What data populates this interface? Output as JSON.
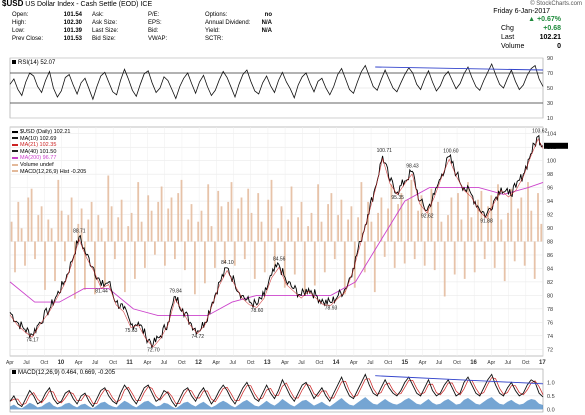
{
  "header": {
    "title_symbol": "$USD",
    "title_name": "US Dollar Index - Cash Settle (EOD) ICE",
    "logo": "© StockCharts.com",
    "date": "Friday  6-Jan-2017",
    "fields": [
      {
        "label": "Open:",
        "value": "101.54"
      },
      {
        "label": "High:",
        "value": "102.30"
      },
      {
        "label": "Low:",
        "value": "101.39"
      },
      {
        "label": "Prev Close:",
        "value": "101.53"
      }
    ],
    "fields2": [
      {
        "label": "Ask:",
        "value": ""
      },
      {
        "label": "Ask Size:",
        "value": ""
      },
      {
        "label": "Last Size:",
        "value": ""
      },
      {
        "label": "Bid Size:",
        "value": ""
      }
    ],
    "fields3": [
      {
        "label": "P/E:",
        "value": ""
      },
      {
        "label": "EPS:",
        "value": ""
      },
      {
        "label": "Bid:",
        "value": ""
      },
      {
        "label": "VWAP:",
        "value": ""
      }
    ],
    "fields4": [
      {
        "label": "Options:",
        "value": "no"
      },
      {
        "label": "Annual Dividend:",
        "value": "N/A"
      },
      {
        "label": "Yield:",
        "value": "N/A"
      },
      {
        "label": "SCTR:",
        "value": ""
      }
    ],
    "pct_change": "+0.67%",
    "chg_label": "Chg",
    "chg_value": "+0.68",
    "last_label": "Last",
    "last_value": "102.21",
    "volume_label": "Volume",
    "volume_value": "0"
  },
  "rsi_label": "RSI(14) 52.07",
  "price_legend": [
    "$USD (Daily) 102.21",
    "MA(10) 102.69",
    "MA(21) 102.35",
    "MA(40) 101.50",
    "MA(200) 96.77",
    "Volume undef",
    "MACD(12,26,9) Hist -0.205"
  ],
  "macd_label": "MACD(12,26,9) 0.464, 0.669, -0.205",
  "colors": {
    "price": "#000000",
    "ma10": "#1a1a1a",
    "ma21": "#cc2222",
    "ma40": "#222222",
    "ma200": "#cc44cc",
    "volume": "#e3b99a",
    "rsi_line": "#111111",
    "trendline": "#3344cc",
    "macd": "#111111",
    "signal": "#cc2222",
    "macd_hist": "#3a7fc0"
  },
  "chart_data": {
    "type": "line",
    "title": "$USD US Dollar Index - Cash Settle (EOD) ICE",
    "price_axis": [
      72,
      74,
      76,
      78,
      80,
      82,
      84,
      86,
      88,
      90,
      92,
      94,
      96,
      98,
      100,
      102,
      104
    ],
    "rsi_axis": [
      10,
      30,
      50,
      70,
      90
    ],
    "macd_axis": [
      0.0,
      0.5,
      1.0
    ],
    "x_ticks": [
      "Apr",
      "Jul",
      "Oct",
      "10",
      "Apr",
      "Jul",
      "Oct",
      "11",
      "Apr",
      "Jul",
      "Oct",
      "12",
      "Apr",
      "Jul",
      "Oct",
      "13",
      "Apr",
      "Jul",
      "Oct",
      "14",
      "Apr",
      "Jul",
      "Oct",
      "15",
      "Apr",
      "Jul",
      "Oct",
      "16",
      "Apr",
      "Jul",
      "Oct",
      "17"
    ],
    "price_annotations": [
      {
        "label": "74.17",
        "value": 74.17
      },
      {
        "label": "88.71",
        "value": 88.71
      },
      {
        "label": "81.44",
        "value": 81.44
      },
      {
        "label": "75.63",
        "value": 75.63
      },
      {
        "label": "72.70",
        "value": 72.7
      },
      {
        "label": "79.84",
        "value": 79.84
      },
      {
        "label": "74.72",
        "value": 74.72
      },
      {
        "label": "84.10",
        "value": 84.1
      },
      {
        "label": "78.60",
        "value": 78.6
      },
      {
        "label": "84.56",
        "value": 84.56
      },
      {
        "label": "78.93",
        "value": 78.93
      },
      {
        "label": "100.71",
        "value": 100.71
      },
      {
        "label": "95.35",
        "value": 95.35
      },
      {
        "label": "98.43",
        "value": 98.43
      },
      {
        "label": "92.62",
        "value": 92.62
      },
      {
        "label": "100.60",
        "value": 100.6
      },
      {
        "label": "91.88",
        "value": 91.88
      },
      {
        "label": "103.62",
        "value": 103.62
      }
    ],
    "last_close": 102.21,
    "rsi_last": 52.07,
    "series": [
      {
        "name": "$USD (Daily)",
        "values": [
          [
            0,
            77.5
          ],
          [
            3,
            76
          ],
          [
            6,
            75
          ],
          [
            9,
            74.17
          ],
          [
            12,
            76
          ],
          [
            16,
            78
          ],
          [
            19,
            80
          ],
          [
            22,
            82
          ],
          [
            25,
            85
          ],
          [
            28,
            88.71
          ],
          [
            31,
            86
          ],
          [
            34,
            84
          ],
          [
            37,
            81.44
          ],
          [
            40,
            82
          ],
          [
            43,
            79
          ],
          [
            46,
            78
          ],
          [
            49,
            75.63
          ],
          [
            52,
            76
          ],
          [
            55,
            74
          ],
          [
            58,
            72.7
          ],
          [
            61,
            74
          ],
          [
            64,
            76
          ],
          [
            67,
            79.84
          ],
          [
            70,
            78
          ],
          [
            73,
            76
          ],
          [
            76,
            74.72
          ],
          [
            79,
            76
          ],
          [
            82,
            79
          ],
          [
            85,
            82
          ],
          [
            88,
            84.1
          ],
          [
            91,
            82
          ],
          [
            94,
            80
          ],
          [
            97,
            79
          ],
          [
            100,
            78.6
          ],
          [
            103,
            80
          ],
          [
            106,
            83
          ],
          [
            109,
            84.56
          ],
          [
            112,
            82
          ],
          [
            115,
            81
          ],
          [
            118,
            80
          ],
          [
            121,
            81
          ],
          [
            124,
            80
          ],
          [
            127,
            79
          ],
          [
            130,
            78.93
          ],
          [
            133,
            80
          ],
          [
            136,
            81
          ],
          [
            139,
            84
          ],
          [
            142,
            88
          ],
          [
            145,
            92
          ],
          [
            148,
            96
          ],
          [
            151,
            100.71
          ],
          [
            154,
            97
          ],
          [
            157,
            95.35
          ],
          [
            160,
            97
          ],
          [
            163,
            98.43
          ],
          [
            166,
            94
          ],
          [
            169,
            92.62
          ],
          [
            172,
            95
          ],
          [
            175,
            98
          ],
          [
            178,
            100.6
          ],
          [
            181,
            98
          ],
          [
            184,
            96
          ],
          [
            187,
            95
          ],
          [
            190,
            93
          ],
          [
            193,
            91.88
          ],
          [
            196,
            94
          ],
          [
            199,
            96
          ],
          [
            202,
            95
          ],
          [
            205,
            96
          ],
          [
            208,
            98
          ],
          [
            211,
            101
          ],
          [
            214,
            103.62
          ],
          [
            216,
            102.21
          ]
        ]
      },
      {
        "name": "MA(200)",
        "values": [
          [
            0,
            82
          ],
          [
            10,
            79
          ],
          [
            20,
            79
          ],
          [
            30,
            81
          ],
          [
            40,
            81
          ],
          [
            50,
            78
          ],
          [
            60,
            77
          ],
          [
            70,
            77
          ],
          [
            80,
            77
          ],
          [
            90,
            79
          ],
          [
            100,
            80
          ],
          [
            110,
            80
          ],
          [
            120,
            80
          ],
          [
            130,
            80
          ],
          [
            140,
            82
          ],
          [
            150,
            88
          ],
          [
            160,
            94
          ],
          [
            170,
            96
          ],
          [
            180,
            96
          ],
          [
            190,
            96
          ],
          [
            200,
            95
          ],
          [
            210,
            96
          ],
          [
            216,
            96.77
          ]
        ]
      }
    ],
    "volume_bars": [
      9,
      14,
      18,
      6,
      11,
      20,
      24,
      8,
      12,
      16,
      22,
      10,
      6,
      18,
      28,
      14,
      9,
      12,
      20,
      26,
      8,
      15,
      22,
      10,
      18,
      24,
      12,
      6,
      20,
      30,
      16,
      8,
      11,
      19,
      23,
      7,
      13,
      17,
      27,
      9,
      12,
      21,
      14,
      6,
      18,
      25,
      11,
      15,
      20,
      8,
      22,
      28,
      13,
      10,
      17,
      24,
      9,
      14,
      19,
      26,
      7,
      12,
      23,
      16,
      10,
      18,
      27,
      11,
      15,
      20,
      8,
      24,
      13,
      17,
      22,
      9,
      14,
      19,
      28,
      12,
      6,
      16,
      21,
      10,
      25,
      15,
      11,
      18,
      23,
      7,
      13,
      20,
      26,
      9,
      14,
      17,
      22,
      8,
      12,
      19,
      24,
      10,
      16,
      21,
      11,
      27,
      14,
      18,
      9,
      23,
      13,
      20,
      7,
      15,
      26,
      12,
      17,
      22,
      10,
      19,
      28,
      8,
      14,
      21,
      11,
      16,
      24,
      13,
      18,
      9,
      25,
      12,
      20,
      15,
      22,
      10,
      17,
      27,
      11,
      14,
      19,
      23,
      8,
      16,
      21,
      12,
      26,
      10,
      18,
      13,
      24,
      9,
      15,
      20,
      11,
      27,
      14,
      17,
      22,
      8
    ],
    "rsi_values": [
      55,
      62,
      48,
      40,
      58,
      70,
      66,
      52,
      44,
      60,
      72,
      50,
      38,
      46,
      64,
      68,
      54,
      42,
      57,
      63,
      49,
      35,
      52,
      66,
      71,
      58,
      45,
      41,
      60,
      75,
      62,
      47,
      39,
      55,
      69,
      73,
      57,
      44,
      50,
      65,
      60,
      48,
      36,
      52,
      63,
      70,
      56,
      43,
      58,
      67,
      52,
      40,
      47,
      61,
      72,
      64,
      51,
      38,
      55,
      68,
      74,
      59,
      46,
      42,
      57,
      66,
      53,
      44,
      60,
      71,
      58,
      49,
      37,
      54,
      65,
      70,
      56,
      45,
      59,
      63,
      50,
      41,
      52,
      68,
      76,
      62,
      48,
      43,
      58,
      72,
      80,
      66,
      52,
      47,
      61,
      74,
      62,
      50,
      45,
      57,
      68,
      77,
      70,
      55,
      48,
      62,
      73,
      58,
      46,
      53,
      66,
      72,
      60,
      49,
      56,
      69,
      78,
      64,
      52,
      47,
      60,
      71,
      82,
      68,
      55,
      50,
      63,
      74,
      59,
      48,
      54,
      67,
      76,
      80,
      62,
      52
    ],
    "rsi_trendline": [
      [
        148,
        78
      ],
      [
        216,
        74
      ]
    ],
    "macd_values": [
      0.3,
      0.5,
      0.2,
      0.1,
      0.4,
      0.7,
      0.5,
      0.2,
      0.3,
      0.6,
      0.8,
      0.4,
      0.2,
      0.3,
      0.6,
      0.7,
      0.4,
      0.2,
      0.5,
      0.6,
      0.3,
      0.1,
      0.4,
      0.7,
      0.8,
      0.5,
      0.3,
      0.2,
      0.6,
      0.9,
      0.7,
      0.4,
      0.2,
      0.5,
      0.8,
      0.9,
      0.6,
      0.3,
      0.4,
      0.7,
      0.6,
      0.3,
      0.1,
      0.4,
      0.7,
      0.8,
      0.5,
      0.3,
      0.6,
      0.8,
      0.5,
      0.2,
      0.4,
      0.7,
      0.9,
      0.7,
      0.4,
      0.2,
      0.5,
      0.8,
      1.0,
      0.7,
      0.4,
      0.3,
      0.6,
      0.9,
      0.6,
      0.4,
      0.7,
      1.1,
      0.8,
      0.5,
      0.3,
      0.6,
      0.9,
      1.0,
      0.7,
      0.4,
      0.6,
      0.8,
      0.5,
      0.3,
      0.6,
      0.9,
      1.2,
      0.8,
      0.5,
      0.4,
      0.7,
      1.0,
      1.3,
      0.9,
      0.6,
      0.5,
      0.8,
      1.1,
      0.8,
      0.6,
      0.5,
      0.7,
      1.0,
      1.2,
      0.9,
      0.6,
      0.5,
      0.8,
      1.1,
      0.7,
      0.5,
      0.6,
      0.9,
      1.1,
      0.8,
      0.5,
      0.6,
      1.0,
      1.2,
      0.9,
      0.6,
      0.5,
      0.8,
      1.1,
      1.3,
      0.9,
      0.6,
      0.5,
      0.8,
      1.0,
      0.7,
      0.5,
      0.6,
      0.9,
      1.1,
      1.0,
      0.6,
      0.46
    ],
    "macd_trendline": [
      [
        148,
        1.25
      ],
      [
        216,
        0.95
      ]
    ]
  }
}
